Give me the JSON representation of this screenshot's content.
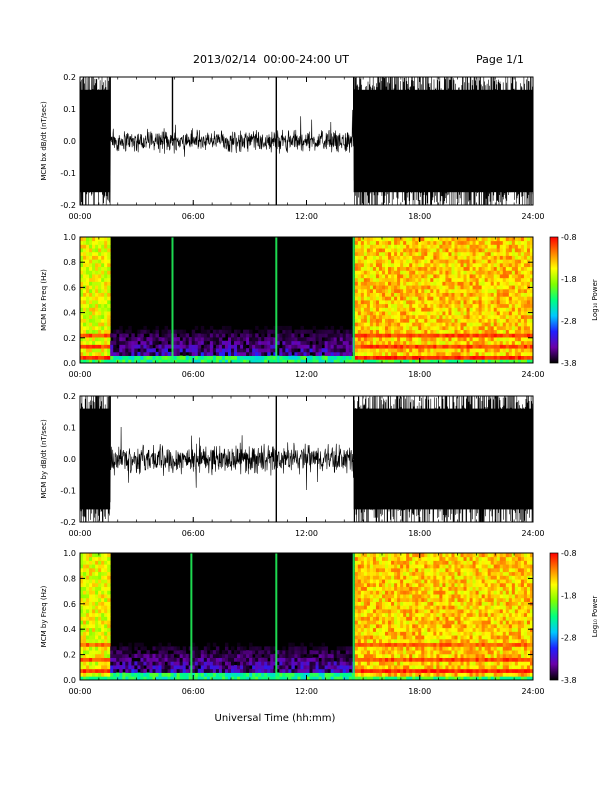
{
  "header": {
    "title": "2013/02/14  00:00-24:00 UT",
    "page": "Page 1/1"
  },
  "footer": {
    "xlabel": "Universal Time (hh:mm)"
  },
  "colorbar": {
    "label": "Log₁₀ Power",
    "ticks": [
      "-0.8",
      "-1.8",
      "-2.8",
      "-3.8"
    ],
    "range": [
      -3.8,
      -0.8
    ],
    "colors": [
      "#000000",
      "#6a00a8",
      "#2020ff",
      "#00c8ff",
      "#00ff80",
      "#80ff00",
      "#ffff00",
      "#ff8000",
      "#ff0000"
    ]
  },
  "chart_data": [
    {
      "type": "line",
      "ylabel": "MCM bx dB/dt (nT/sec)",
      "x_ticks": [
        "00:00",
        "06:00",
        "12:00",
        "18:00",
        "24:00"
      ],
      "y_ticks": [
        "0.2",
        "0.1",
        "0.0",
        "-0.1",
        "-0.2"
      ],
      "xlim": [
        0,
        24
      ],
      "ylim": [
        -0.2,
        0.2
      ],
      "segments": [
        {
          "from": 0.0,
          "to": 1.6,
          "amplitude": 0.2
        },
        {
          "from": 1.6,
          "to": 14.5,
          "amplitude": 0.03
        },
        {
          "from": 14.5,
          "to": 24.0,
          "amplitude": 0.2
        }
      ],
      "spikes": [
        {
          "x": 1.6,
          "y": 0.2
        },
        {
          "x": 4.9,
          "y": 0.2
        },
        {
          "x": 10.4,
          "y": 0.2
        },
        {
          "x": 10.4,
          "y": -0.2
        },
        {
          "x": 14.5,
          "y": 0.2
        }
      ]
    },
    {
      "type": "heatmap",
      "ylabel": "MCM bx Freq (Hz)",
      "x_ticks": [
        "00:00",
        "06:00",
        "12:00",
        "18:00",
        "24:00"
      ],
      "y_ticks": [
        "1.0",
        "0.8",
        "0.6",
        "0.4",
        "0.2",
        "0.0"
      ],
      "xlim": [
        0,
        24
      ],
      "ylim": [
        0,
        1.0
      ],
      "zlim": [
        -3.8,
        -0.8
      ],
      "regions": [
        {
          "from": 0.0,
          "to": 1.6,
          "level": -1.6
        },
        {
          "from": 1.6,
          "to": 14.5,
          "level": -3.7
        },
        {
          "from": 14.5,
          "to": 24.0,
          "level": -1.4
        }
      ],
      "bright_lines": [
        4.9,
        10.4,
        14.5
      ],
      "bands": [
        {
          "freq": 0.05,
          "level": -0.9
        },
        {
          "freq": 0.13,
          "level": -1.0
        },
        {
          "freq": 0.22,
          "level": -1.0
        }
      ]
    },
    {
      "type": "line",
      "ylabel": "MCM by dB/dt (nT/sec)",
      "x_ticks": [
        "00:00",
        "06:00",
        "12:00",
        "18:00",
        "24:00"
      ],
      "y_ticks": [
        "0.2",
        "0.1",
        "0.0",
        "-0.1",
        "-0.2"
      ],
      "xlim": [
        0,
        24
      ],
      "ylim": [
        -0.2,
        0.2
      ],
      "segments": [
        {
          "from": 0.0,
          "to": 1.6,
          "amplitude": 0.2
        },
        {
          "from": 1.6,
          "to": 14.5,
          "amplitude": 0.04
        },
        {
          "from": 14.5,
          "to": 24.0,
          "amplitude": 0.2
        }
      ],
      "spikes": [
        {
          "x": 1.6,
          "y": 0.2
        },
        {
          "x": 10.4,
          "y": 0.2
        },
        {
          "x": 10.4,
          "y": -0.2
        },
        {
          "x": 14.5,
          "y": 0.2
        }
      ]
    },
    {
      "type": "heatmap",
      "ylabel": "MCM by Freq (Hz)",
      "x_ticks": [
        "00:00",
        "06:00",
        "12:00",
        "18:00",
        "24:00"
      ],
      "y_ticks": [
        "1.0",
        "0.8",
        "0.6",
        "0.4",
        "0.2",
        "0.0"
      ],
      "xlim": [
        0,
        24
      ],
      "ylim": [
        0,
        1.0
      ],
      "zlim": [
        -3.8,
        -0.8
      ],
      "regions": [
        {
          "from": 0.0,
          "to": 1.6,
          "level": -1.6
        },
        {
          "from": 1.6,
          "to": 14.5,
          "level": -3.7
        },
        {
          "from": 14.5,
          "to": 24.0,
          "level": -1.4
        }
      ],
      "bright_lines": [
        5.9,
        10.4,
        14.5
      ],
      "bands": [
        {
          "freq": 0.07,
          "level": -0.9
        },
        {
          "freq": 0.16,
          "level": -1.0
        },
        {
          "freq": 0.28,
          "level": -1.1
        }
      ]
    }
  ]
}
